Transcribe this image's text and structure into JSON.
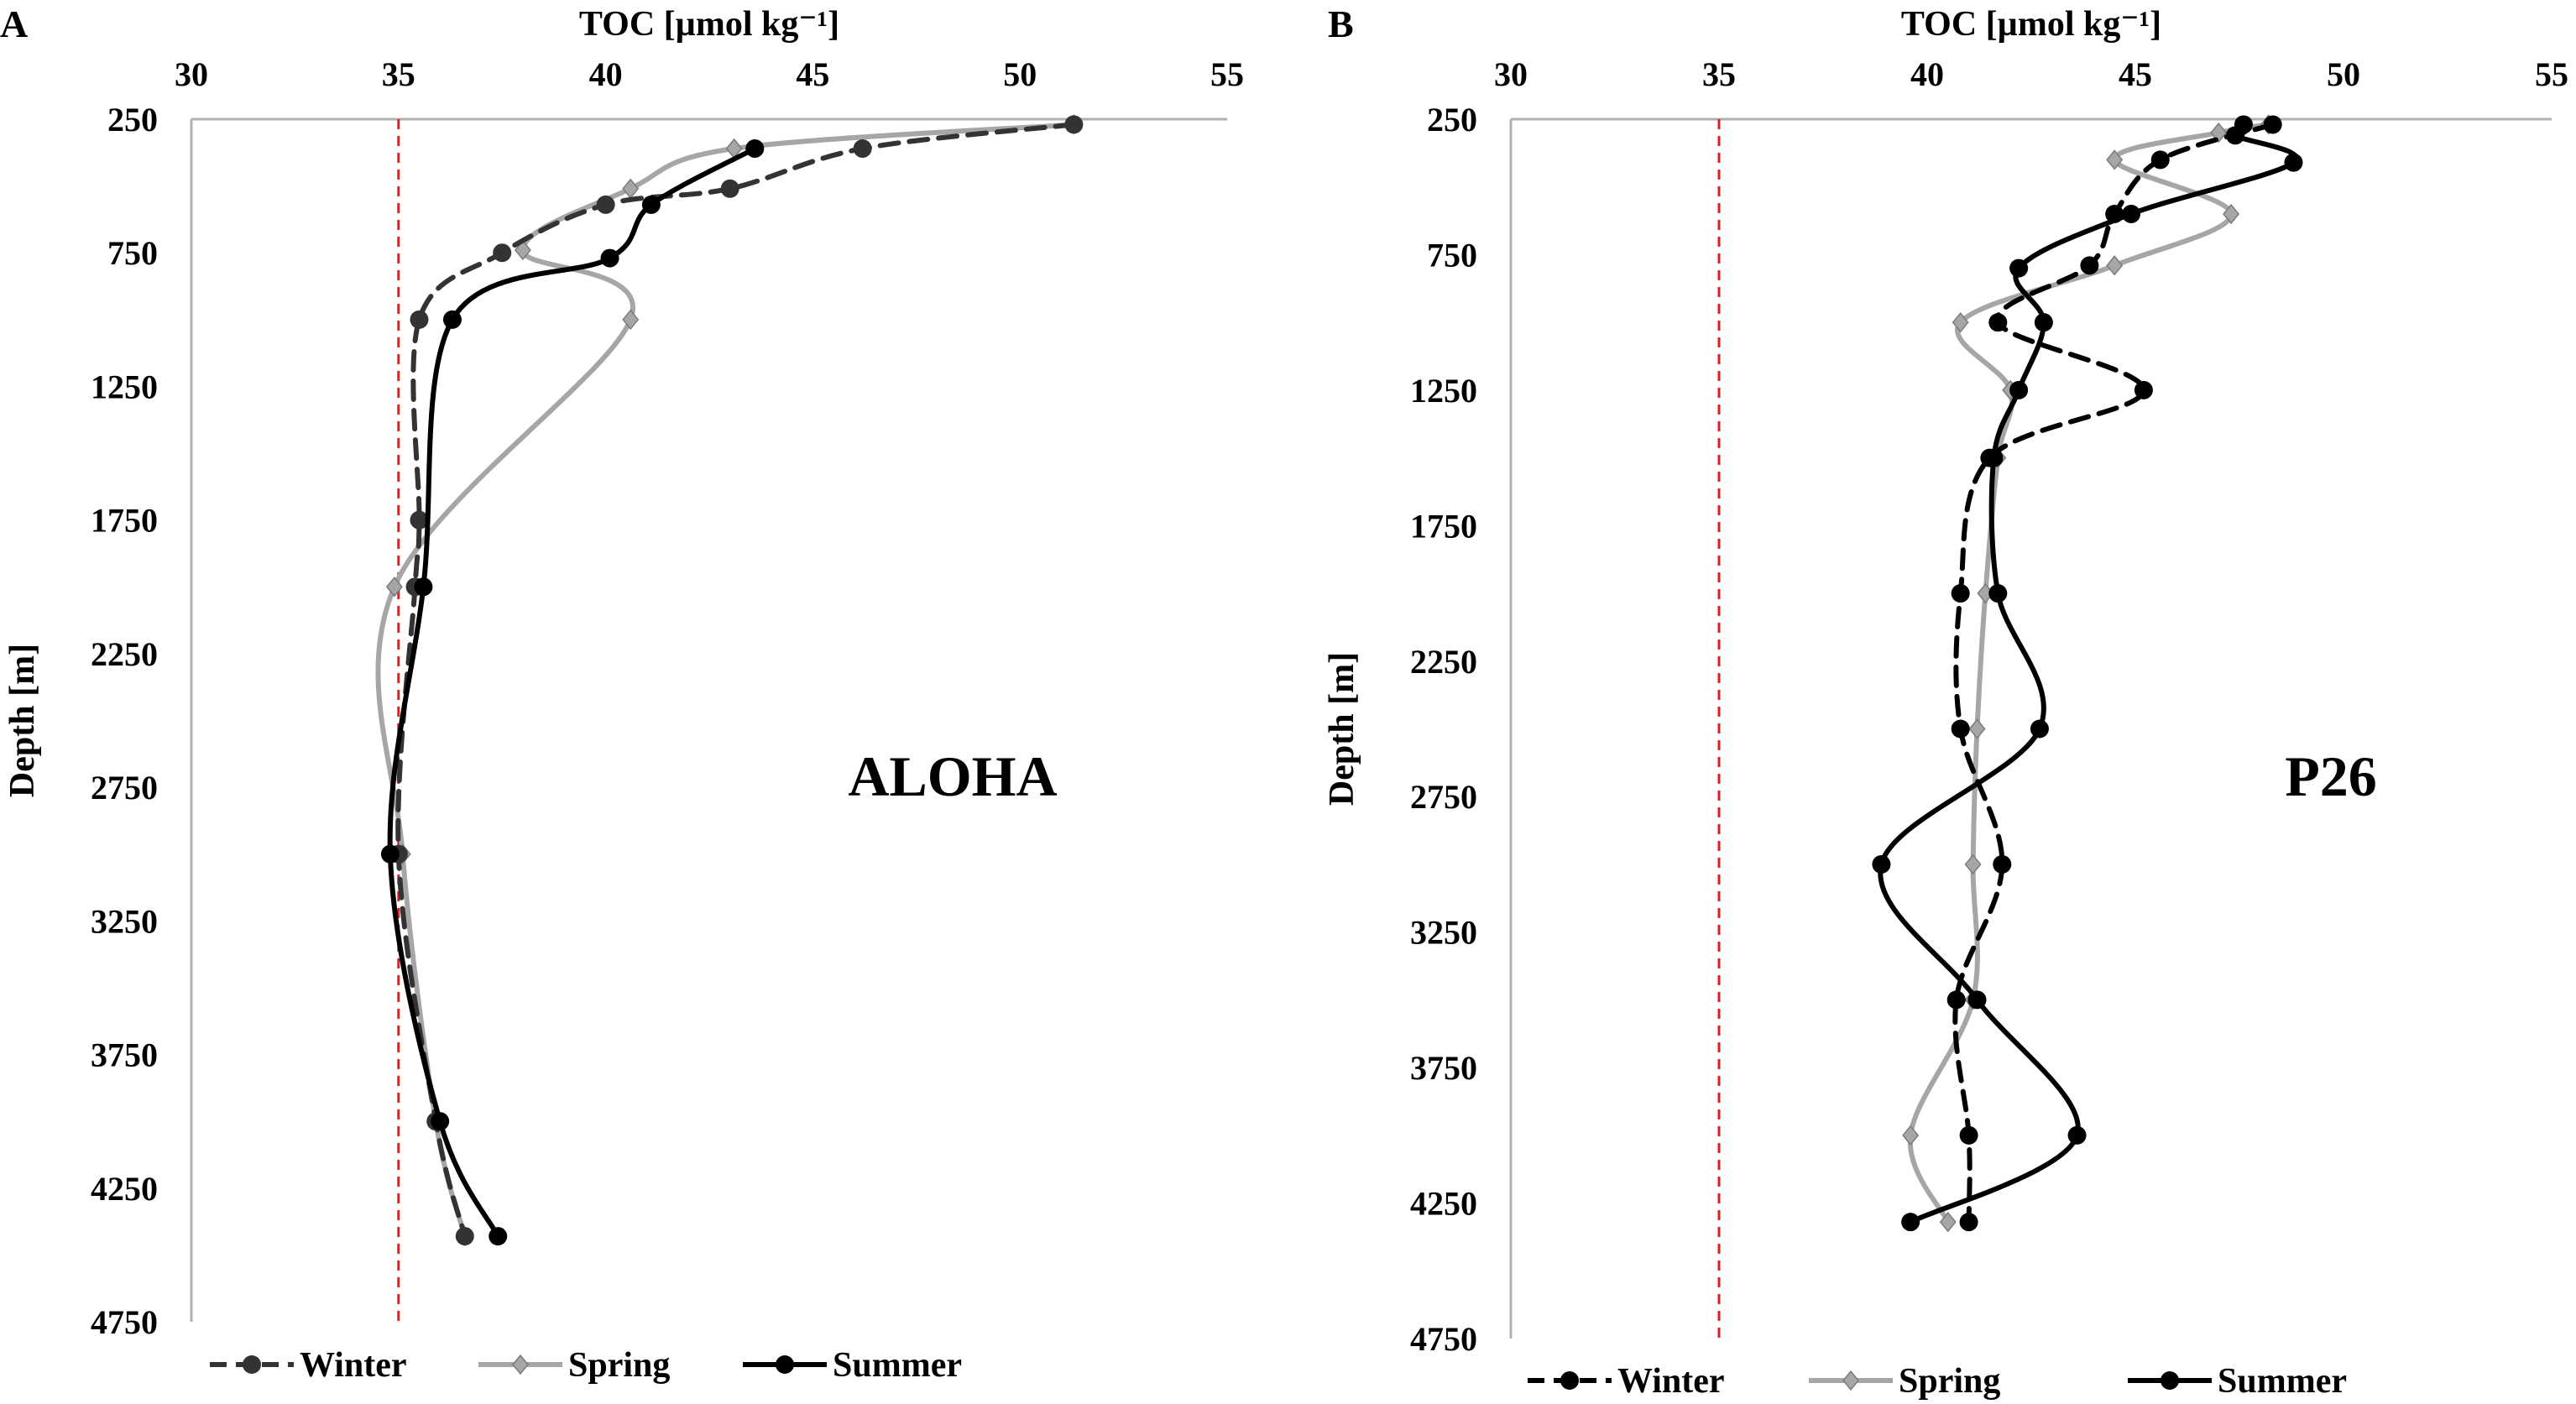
{
  "figure": {
    "background": "#ffffff",
    "axis_color": "#b0b0b0",
    "reference_line_color": "#e02020"
  },
  "chart_data": [
    {
      "type": "line",
      "panel_label": "A",
      "station": "ALOHA",
      "xlabel": "TOC [µmol kg⁻¹]",
      "ylabel": "Depth [m]",
      "xlim": [
        30,
        55
      ],
      "ylim": [
        250,
        4750
      ],
      "y_inverted": true,
      "x_ticks": [
        "30",
        "35",
        "40",
        "45",
        "50",
        "55"
      ],
      "y_ticks": [
        "250",
        "750",
        "1250",
        "1750",
        "2250",
        "2750",
        "3250",
        "3750",
        "4250",
        "4750"
      ],
      "reference_x": 35,
      "legend_position": "bottom",
      "series": [
        {
          "name": "Winter",
          "color": "#333333",
          "dash": "dashed",
          "marker": "circle",
          "points": [
            [
              51.3,
              270
            ],
            [
              46.2,
              360
            ],
            [
              43.0,
              510
            ],
            [
              40.0,
              570
            ],
            [
              37.5,
              750
            ],
            [
              35.5,
              1000
            ],
            [
              35.5,
              1750
            ],
            [
              35.4,
              2000
            ],
            [
              35.0,
              3000
            ],
            [
              35.9,
              4000
            ],
            [
              36.6,
              4430
            ]
          ]
        },
        {
          "name": "Spring",
          "color": "#a6a6a6",
          "dash": "solid",
          "marker": "diamond",
          "points": [
            [
              51.3,
              270
            ],
            [
              43.1,
              360
            ],
            [
              40.6,
              510
            ],
            [
              38.0,
              740
            ],
            [
              40.6,
              1000
            ],
            [
              34.9,
              2000
            ],
            [
              35.1,
              3000
            ],
            [
              35.9,
              4000
            ],
            [
              36.6,
              4430
            ]
          ]
        },
        {
          "name": "Summer",
          "color": "#000000",
          "dash": "solid",
          "marker": "circle",
          "points": [
            [
              43.6,
              360
            ],
            [
              41.1,
              570
            ],
            [
              40.1,
              770
            ],
            [
              36.3,
              1000
            ],
            [
              35.6,
              2000
            ],
            [
              34.8,
              3000
            ],
            [
              36.0,
              4000
            ],
            [
              37.4,
              4430
            ]
          ]
        }
      ]
    },
    {
      "type": "line",
      "panel_label": "B",
      "station": "P26",
      "xlabel": "TOC [µmol kg⁻¹]",
      "ylabel": "Depth [m]",
      "xlim": [
        30,
        55
      ],
      "ylim": [
        250,
        4750
      ],
      "y_inverted": true,
      "x_ticks": [
        "30",
        "35",
        "40",
        "45",
        "50",
        "55"
      ],
      "y_ticks": [
        "250",
        "750",
        "1250",
        "1750",
        "2250",
        "2750",
        "3250",
        "3750",
        "4250",
        "4750"
      ],
      "reference_x": 35,
      "legend_position": "bottom",
      "series": [
        {
          "name": "Winter",
          "color": "#000000",
          "dash": "dashed",
          "marker": "circle",
          "points": [
            [
              48.3,
              270
            ],
            [
              45.6,
              400
            ],
            [
              44.5,
              600
            ],
            [
              43.9,
              790
            ],
            [
              41.7,
              1000
            ],
            [
              45.2,
              1250
            ],
            [
              41.5,
              1500
            ],
            [
              40.8,
              2000
            ],
            [
              40.8,
              2500
            ],
            [
              41.8,
              3000
            ],
            [
              40.7,
              3500
            ],
            [
              41.0,
              4000
            ],
            [
              41.0,
              4320
            ]
          ]
        },
        {
          "name": "Spring",
          "color": "#a6a6a6",
          "dash": "solid",
          "marker": "diamond",
          "points": [
            [
              48.2,
              270
            ],
            [
              47.0,
              300
            ],
            [
              44.5,
              400
            ],
            [
              47.3,
              600
            ],
            [
              44.5,
              790
            ],
            [
              40.8,
              1000
            ],
            [
              42.0,
              1250
            ],
            [
              41.7,
              1500
            ],
            [
              41.4,
              2000
            ],
            [
              41.2,
              2500
            ],
            [
              41.1,
              3000
            ],
            [
              41.1,
              3500
            ],
            [
              39.6,
              4000
            ],
            [
              40.5,
              4320
            ]
          ]
        },
        {
          "name": "Summer",
          "color": "#000000",
          "dash": "solid",
          "marker": "circle",
          "points": [
            [
              47.6,
              270
            ],
            [
              47.4,
              310
            ],
            [
              48.8,
              410
            ],
            [
              44.9,
              600
            ],
            [
              42.2,
              800
            ],
            [
              42.8,
              1000
            ],
            [
              42.2,
              1250
            ],
            [
              41.6,
              1500
            ],
            [
              41.7,
              2000
            ],
            [
              42.7,
              2500
            ],
            [
              38.9,
              3000
            ],
            [
              41.2,
              3500
            ],
            [
              43.6,
              4000
            ],
            [
              39.6,
              4320
            ]
          ]
        }
      ]
    }
  ]
}
